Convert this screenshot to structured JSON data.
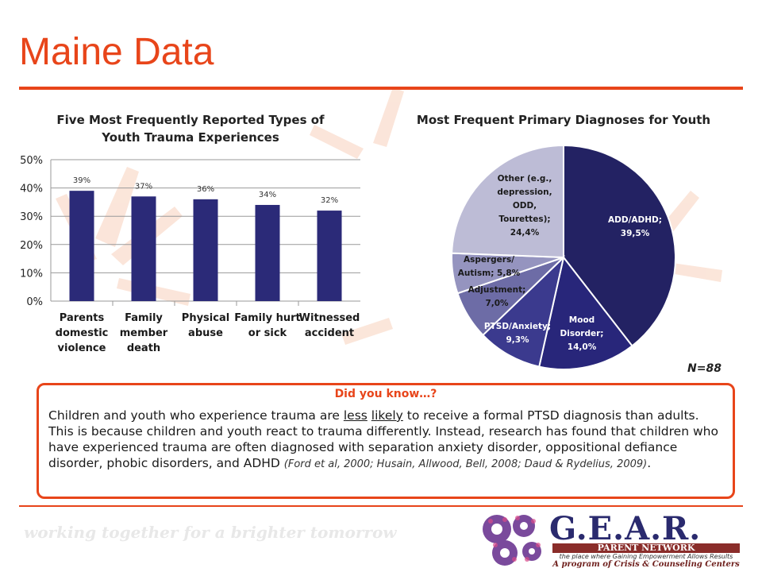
{
  "page": {
    "title": "Maine Data",
    "n_label": "N=88",
    "tagline": "working together for a brighter tomorrow"
  },
  "bar_chart": {
    "title_line1": "Five Most Frequently Reported Types of",
    "title_line2": "Youth Trauma Experiences"
  },
  "pie_chart": {
    "title": "Most Frequent Primary Diagnoses for Youth"
  },
  "chart_data": [
    {
      "type": "bar",
      "title": "Five Most Frequently Reported Types of Youth Trauma Experiences",
      "categories": [
        [
          "Parents",
          "domestic",
          "violence"
        ],
        [
          "Family",
          "member",
          "death"
        ],
        [
          "Physical",
          "abuse"
        ],
        [
          "Family hurt",
          "or sick"
        ],
        [
          "Witnessed",
          "accident"
        ]
      ],
      "values": [
        39,
        37,
        36,
        34,
        32
      ],
      "data_labels": [
        "39%",
        "37%",
        "36%",
        "34%",
        "32%"
      ],
      "ylim": [
        0,
        50
      ],
      "yticks": [
        0,
        10,
        20,
        30,
        40,
        50
      ],
      "ytick_labels": [
        "0%",
        "10%",
        "20%",
        "30%",
        "40%",
        "50%"
      ],
      "grid": true,
      "color": "#2b2a78"
    },
    {
      "type": "pie",
      "title": "Most Frequent Primary Diagnoses for Youth",
      "slices": [
        {
          "label": [
            "ADD/ADHD;",
            "39,5%"
          ],
          "value": 39.5,
          "color": "#232263",
          "text_color": "#ffffff"
        },
        {
          "label": [
            "Mood",
            "Disorder;",
            "14,0%"
          ],
          "value": 14.0,
          "color": "#28267a",
          "text_color": "#ffffff"
        },
        {
          "label": [
            "PTSD/Anxiety;",
            "9,3%"
          ],
          "value": 9.3,
          "color": "#3b3a8e",
          "text_color": "#ffffff"
        },
        {
          "label": [
            "Adjustment;",
            "7,0%"
          ],
          "value": 7.0,
          "color": "#6d6ca6",
          "text_color": "#1a1a1a"
        },
        {
          "label": [
            "Aspergers/",
            "Autism; 5,8%"
          ],
          "value": 5.8,
          "color": "#9594bf",
          "text_color": "#1a1a1a"
        },
        {
          "label": [
            "Other (e.g.,",
            "depression,",
            "ODD,",
            "Tourettes);",
            "24,4%"
          ],
          "value": 24.4,
          "color": "#bdbcd6",
          "text_color": "#1a1a1a"
        }
      ]
    }
  ],
  "callout": {
    "heading": "Did you know…?",
    "text_a": "Children and youth who experience trauma are ",
    "text_less": "less",
    "text_sp": " ",
    "text_likely": "likely",
    "text_b": " to receive a formal PTSD diagnosis than adults. This is because children and youth react to trauma differently. Instead, research has found that children who have experienced trauma are often diagnosed with separation anxiety disorder, oppositional defiance disorder, phobic disorders, and ADHD ",
    "citation": "(Ford et al, 2000; Husain, Allwood, Bell, 2008; Daud & Rydelius, 2009)",
    "end": "."
  },
  "logo": {
    "name": "G.E.A.R.",
    "band": "PARENT NETWORK",
    "tag": "the place where Gaining Empowerment Allows Results",
    "sub": "A program of Crisis & Counseling Centers"
  }
}
